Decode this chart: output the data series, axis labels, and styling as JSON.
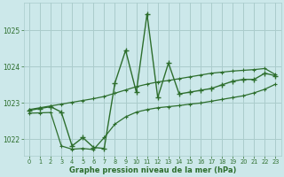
{
  "xlabel": "Graphe pression niveau de la mer (hPa)",
  "background_color": "#cce8ea",
  "grid_color": "#aacccc",
  "line_color": "#2d6e2d",
  "ylim": [
    1021.55,
    1025.75
  ],
  "xlim": [
    -0.5,
    23.5
  ],
  "yticks": [
    1022,
    1023,
    1024,
    1025
  ],
  "xticks": [
    0,
    1,
    2,
    3,
    4,
    5,
    6,
    7,
    8,
    9,
    10,
    11,
    12,
    13,
    14,
    15,
    16,
    17,
    18,
    19,
    20,
    21,
    22,
    23
  ],
  "measured": [
    1022.8,
    1022.85,
    1022.9,
    1022.75,
    1021.82,
    1022.05,
    1021.78,
    1021.75,
    1023.55,
    1024.45,
    1023.3,
    1025.45,
    1023.15,
    1024.1,
    1023.25,
    1023.3,
    1023.35,
    1023.4,
    1023.5,
    1023.6,
    1023.65,
    1023.65,
    1023.82,
    1023.75
  ],
  "upper_trend": [
    1022.82,
    1022.87,
    1022.92,
    1022.97,
    1023.02,
    1023.07,
    1023.12,
    1023.18,
    1023.27,
    1023.36,
    1023.45,
    1023.52,
    1023.58,
    1023.62,
    1023.67,
    1023.72,
    1023.77,
    1023.82,
    1023.85,
    1023.88,
    1023.9,
    1023.92,
    1023.95,
    1023.78
  ],
  "lower_trend": [
    1022.72,
    1022.73,
    1022.74,
    1021.82,
    1021.73,
    1021.75,
    1021.72,
    1022.05,
    1022.42,
    1022.62,
    1022.75,
    1022.82,
    1022.87,
    1022.9,
    1022.93,
    1022.97,
    1023.0,
    1023.05,
    1023.1,
    1023.15,
    1023.2,
    1023.28,
    1023.38,
    1023.52
  ]
}
